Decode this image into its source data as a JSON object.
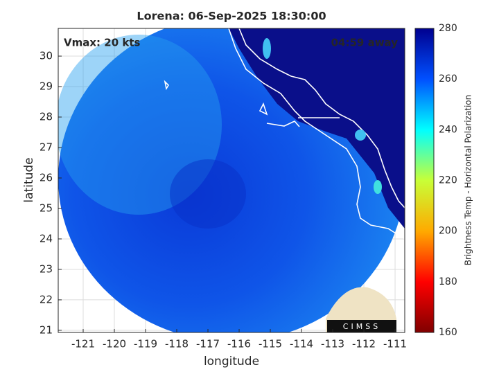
{
  "chart_data": {
    "type": "map",
    "title": "Lorena: 06-Sep-2025 18:30:00",
    "annotations": [
      "Vmax: 20 kts",
      "04:59 away"
    ],
    "xlabel": "longitude",
    "ylabel": "latitude",
    "xlim": [
      -121.8,
      -110.69
    ],
    "ylim": [
      20.93,
      30.91
    ],
    "xticks": [
      -121,
      -120,
      -119,
      -118,
      -117,
      -116,
      -115,
      -114,
      -113,
      -112,
      -111
    ],
    "yticks": [
      21,
      22,
      23,
      24,
      25,
      26,
      27,
      28,
      29,
      30
    ],
    "grid": true,
    "colorbar": {
      "label": "Brightness Temp - Horizontal Polarization",
      "lim": [
        160,
        280
      ],
      "ticks": [
        160,
        180,
        200,
        220,
        240,
        260,
        280
      ],
      "colors": [
        "#800000",
        "#ff0000",
        "#ffaa00",
        "#c8ff37",
        "#00ffff",
        "#0050ff",
        "#00008f"
      ]
    },
    "logo": "CIMSS"
  }
}
